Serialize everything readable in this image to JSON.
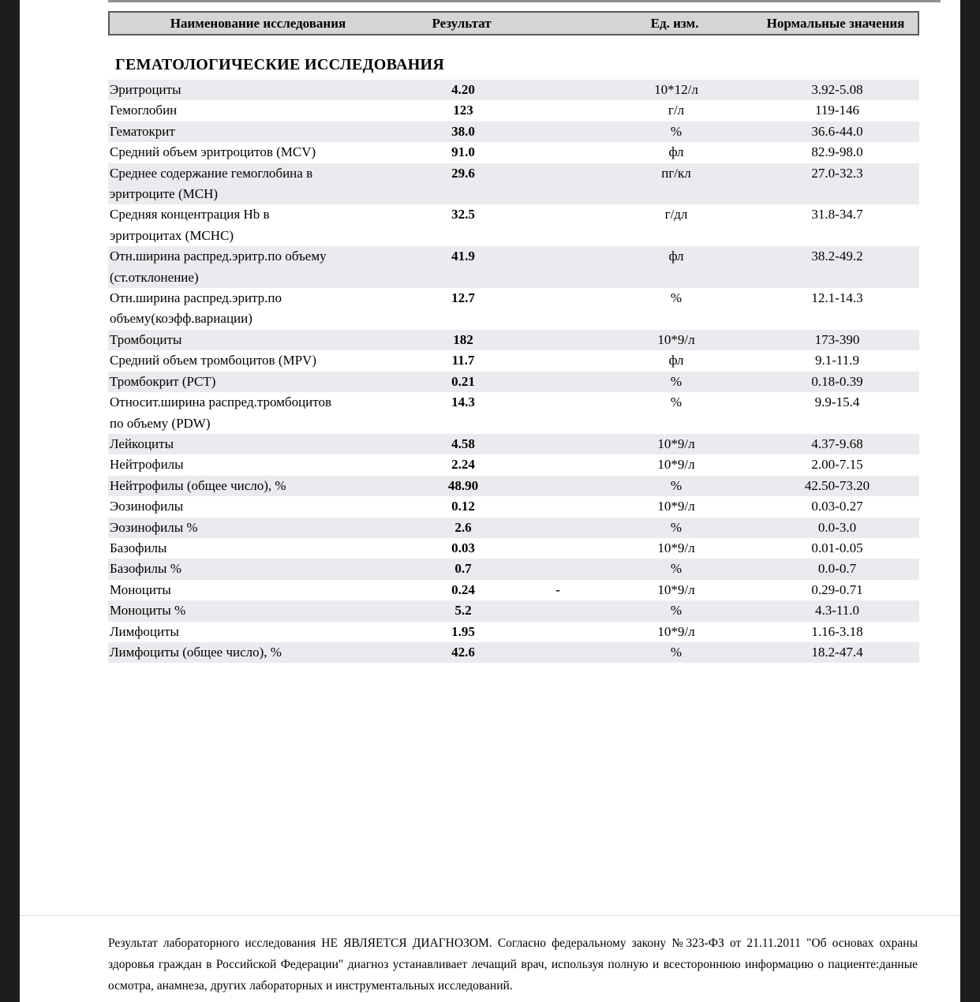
{
  "table": {
    "headers": {
      "name": "Наименование исследования",
      "result": "Результат",
      "units": "Ед. изм.",
      "normal": "Нормальные значения"
    },
    "section_title": "ГЕМАТОЛОГИЧЕСКИЕ ИССЛЕДОВАНИЯ",
    "rows": [
      {
        "name_lines": [
          "Эритроциты"
        ],
        "result": "4.20",
        "flag": "",
        "units": "10*12/л",
        "normal": "3.92-5.08"
      },
      {
        "name_lines": [
          "Гемоглобин"
        ],
        "result": "123",
        "flag": "",
        "units": "г/л",
        "normal": "119-146"
      },
      {
        "name_lines": [
          "Гематокрит"
        ],
        "result": "38.0",
        "flag": "",
        "units": "%",
        "normal": "36.6-44.0"
      },
      {
        "name_lines": [
          "Средний объем эритроцитов (MCV)"
        ],
        "result": "91.0",
        "flag": "",
        "units": "фл",
        "normal": "82.9-98.0"
      },
      {
        "name_lines": [
          "Среднее содержание гемоглобина в",
          "эритроците (MCH)"
        ],
        "result": "29.6",
        "flag": "",
        "units": "пг/кл",
        "normal": "27.0-32.3"
      },
      {
        "name_lines": [
          "Средняя концентрация Hb в",
          "эритроцитах (MCHC)"
        ],
        "result": "32.5",
        "flag": "",
        "units": "г/дл",
        "normal": "31.8-34.7"
      },
      {
        "name_lines": [
          "Отн.ширина распред.эритр.по объему",
          "(ст.отклонение)"
        ],
        "result": "41.9",
        "flag": "",
        "units": "фл",
        "normal": "38.2-49.2"
      },
      {
        "name_lines": [
          "Отн.ширина распред.эритр.по",
          "объему(коэфф.вариации)"
        ],
        "result": "12.7",
        "flag": "",
        "units": "%",
        "normal": "12.1-14.3"
      },
      {
        "name_lines": [
          "Тромбоциты"
        ],
        "result": "182",
        "flag": "",
        "units": "10*9/л",
        "normal": "173-390"
      },
      {
        "name_lines": [
          "Средний объем тромбоцитов (MPV)"
        ],
        "result": "11.7",
        "flag": "",
        "units": "фл",
        "normal": "9.1-11.9"
      },
      {
        "name_lines": [
          "Тромбокрит (PCT)"
        ],
        "result": "0.21",
        "flag": "",
        "units": "%",
        "normal": "0.18-0.39"
      },
      {
        "name_lines": [
          "Относит.ширина распред.тромбоцитов",
          "по объему (PDW)"
        ],
        "result": "14.3",
        "flag": "",
        "units": "%",
        "normal": "9.9-15.4"
      },
      {
        "name_lines": [
          "Лейкоциты"
        ],
        "result": "4.58",
        "flag": "",
        "units": "10*9/л",
        "normal": "4.37-9.68"
      },
      {
        "name_lines": [
          "Нейтрофилы"
        ],
        "result": "2.24",
        "flag": "",
        "units": "10*9/л",
        "normal": "2.00-7.15"
      },
      {
        "name_lines": [
          "Нейтрофилы (общее число), %"
        ],
        "result": "48.90",
        "flag": "",
        "units": "%",
        "normal": "42.50-73.20"
      },
      {
        "name_lines": [
          "Эозинофилы"
        ],
        "result": "0.12",
        "flag": "",
        "units": "10*9/л",
        "normal": "0.03-0.27"
      },
      {
        "name_lines": [
          "Эозинофилы %"
        ],
        "result": "2.6",
        "flag": "",
        "units": "%",
        "normal": "0.0-3.0"
      },
      {
        "name_lines": [
          "Базофилы"
        ],
        "result": "0.03",
        "flag": "",
        "units": "10*9/л",
        "normal": "0.01-0.05"
      },
      {
        "name_lines": [
          "Базофилы %"
        ],
        "result": "0.7",
        "flag": "",
        "units": "%",
        "normal": "0.0-0.7"
      },
      {
        "name_lines": [
          "Моноциты"
        ],
        "result": "0.24",
        "flag": "-",
        "units": "10*9/л",
        "normal": "0.29-0.71"
      },
      {
        "name_lines": [
          "Моноциты %"
        ],
        "result": "5.2",
        "flag": "",
        "units": "%",
        "normal": "4.3-11.0"
      },
      {
        "name_lines": [
          "Лимфоциты"
        ],
        "result": "1.95",
        "flag": "",
        "units": "10*9/л",
        "normal": "1.16-3.18"
      },
      {
        "name_lines": [
          "Лимфоциты (общее число), %"
        ],
        "result": "42.6",
        "flag": "",
        "units": "%",
        "normal": "18.2-47.4"
      }
    ]
  },
  "footer": {
    "disclaimer": "Результат лабораторного исследования НЕ ЯВЛЯЕТСЯ ДИАГНОЗОМ. Согласно федеральному закону №323-ФЗ от 21.11.2011 \"Об основах охраны здоровья граждан в Российской Федерации\" диагноз устанавливает лечащий врач, используя полную и всестороннюю информацию о пациенте:данные осмотра, анамнеза, других лабораторных и инструментальных исследований."
  },
  "colors": {
    "row_stripe": "#ebebef",
    "header_fill": "#d5d5d5",
    "header_border": "#58585a",
    "side_strips": "#1d1d1f",
    "text": "#000000"
  }
}
